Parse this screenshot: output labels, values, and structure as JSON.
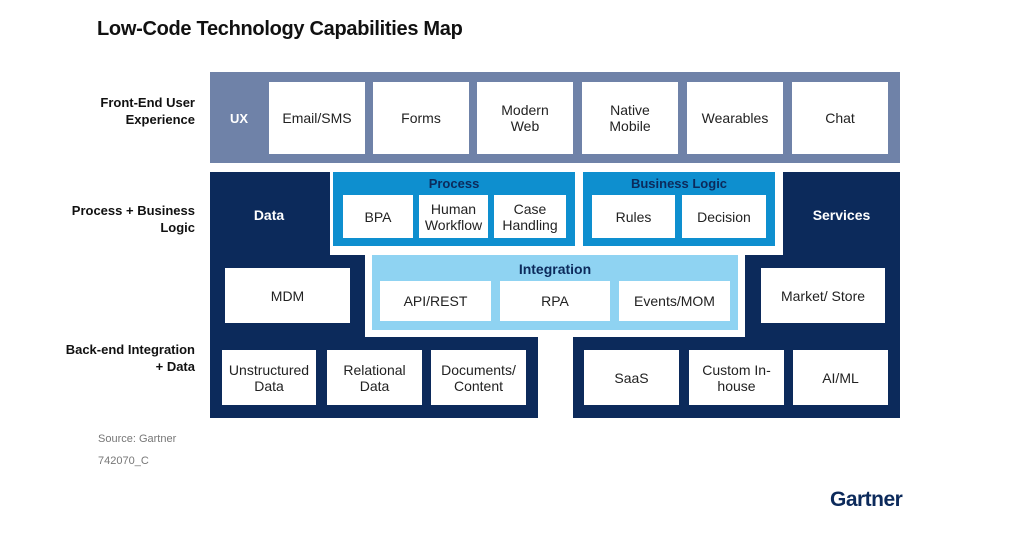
{
  "title": "Low-Code Technology Capabilities Map",
  "row_labels": [
    "Front-End User Experience",
    "Process + Business Logic",
    "Back-end Integration + Data"
  ],
  "front_end": {
    "label": "UX",
    "items": [
      "Email/SMS",
      "Forms",
      "Modern Web",
      "Native Mobile",
      "Wearables",
      "Chat"
    ]
  },
  "data": {
    "label": "Data",
    "items": [
      "MDM"
    ]
  },
  "process": {
    "label": "Process",
    "items": [
      "BPA",
      "Human Workflow",
      "Case Handling"
    ]
  },
  "business_logic": {
    "label": "Business Logic",
    "items": [
      "Rules",
      "Decision"
    ]
  },
  "services": {
    "label": "Services",
    "items": [
      "Market/ Store"
    ]
  },
  "integration": {
    "label": "Integration",
    "items": [
      "API/REST",
      "RPA",
      "Events/MOM"
    ]
  },
  "back_end_left": [
    "Unstructured Data",
    "Relational Data",
    "Documents/ Content"
  ],
  "back_end_right": [
    "SaaS",
    "Custom In-house",
    "AI/ML"
  ],
  "source": "Source: Gartner",
  "figure_id": "742070_C",
  "logo": "Gartner",
  "colors": {
    "navy": "#0c2a5b",
    "front_end": "#6f82a8",
    "process": "#0e8fcf",
    "integration": "#8fd3f2"
  }
}
